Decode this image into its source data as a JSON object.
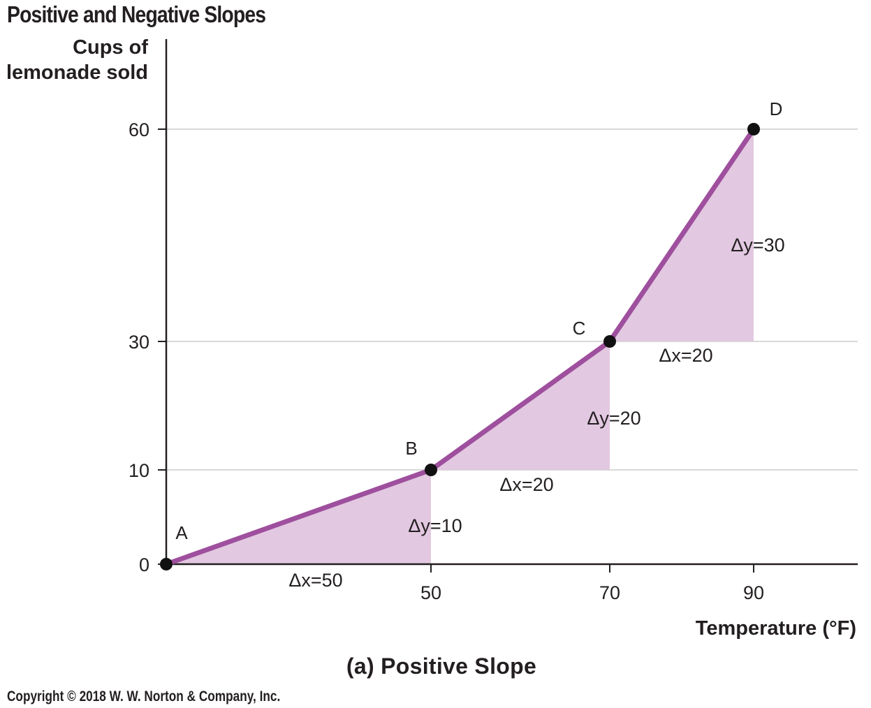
{
  "header": {
    "title": "Positive and Negative Slopes"
  },
  "footer": {
    "subtitle": "(a) Positive Slope",
    "copyright": "Copyright © 2018 W. W. Norton & Company, Inc."
  },
  "colors": {
    "line": "#9e4f9d",
    "fill": "#e2c8e1",
    "point": "#111111",
    "grid": "#d9d9d9",
    "axis": "#231f20"
  },
  "chart_data": {
    "type": "line",
    "title": "Positive and Negative Slopes",
    "subtitle": "(a) Positive Slope",
    "xlabel": "Temperature (°F)",
    "ylabel_lines": [
      "Cups of",
      "lemonade sold"
    ],
    "x_ticks": [
      50,
      70,
      90
    ],
    "y_ticks": [
      0,
      10,
      30,
      60
    ],
    "points": [
      {
        "label": "A",
        "x": 0,
        "y": 0
      },
      {
        "label": "B",
        "x": 50,
        "y": 10
      },
      {
        "label": "C",
        "x": 70,
        "y": 30
      },
      {
        "label": "D",
        "x": 90,
        "y": 60
      }
    ],
    "annotations": [
      {
        "segment": "A-B",
        "dx_label": "Δx=50",
        "dy_label": "Δy=10"
      },
      {
        "segment": "B-C",
        "dx_label": "Δx=20",
        "dy_label": "Δy=20"
      },
      {
        "segment": "C-D",
        "dx_label": "Δx=20",
        "dy_label": "Δy=30"
      }
    ],
    "grid": true
  }
}
